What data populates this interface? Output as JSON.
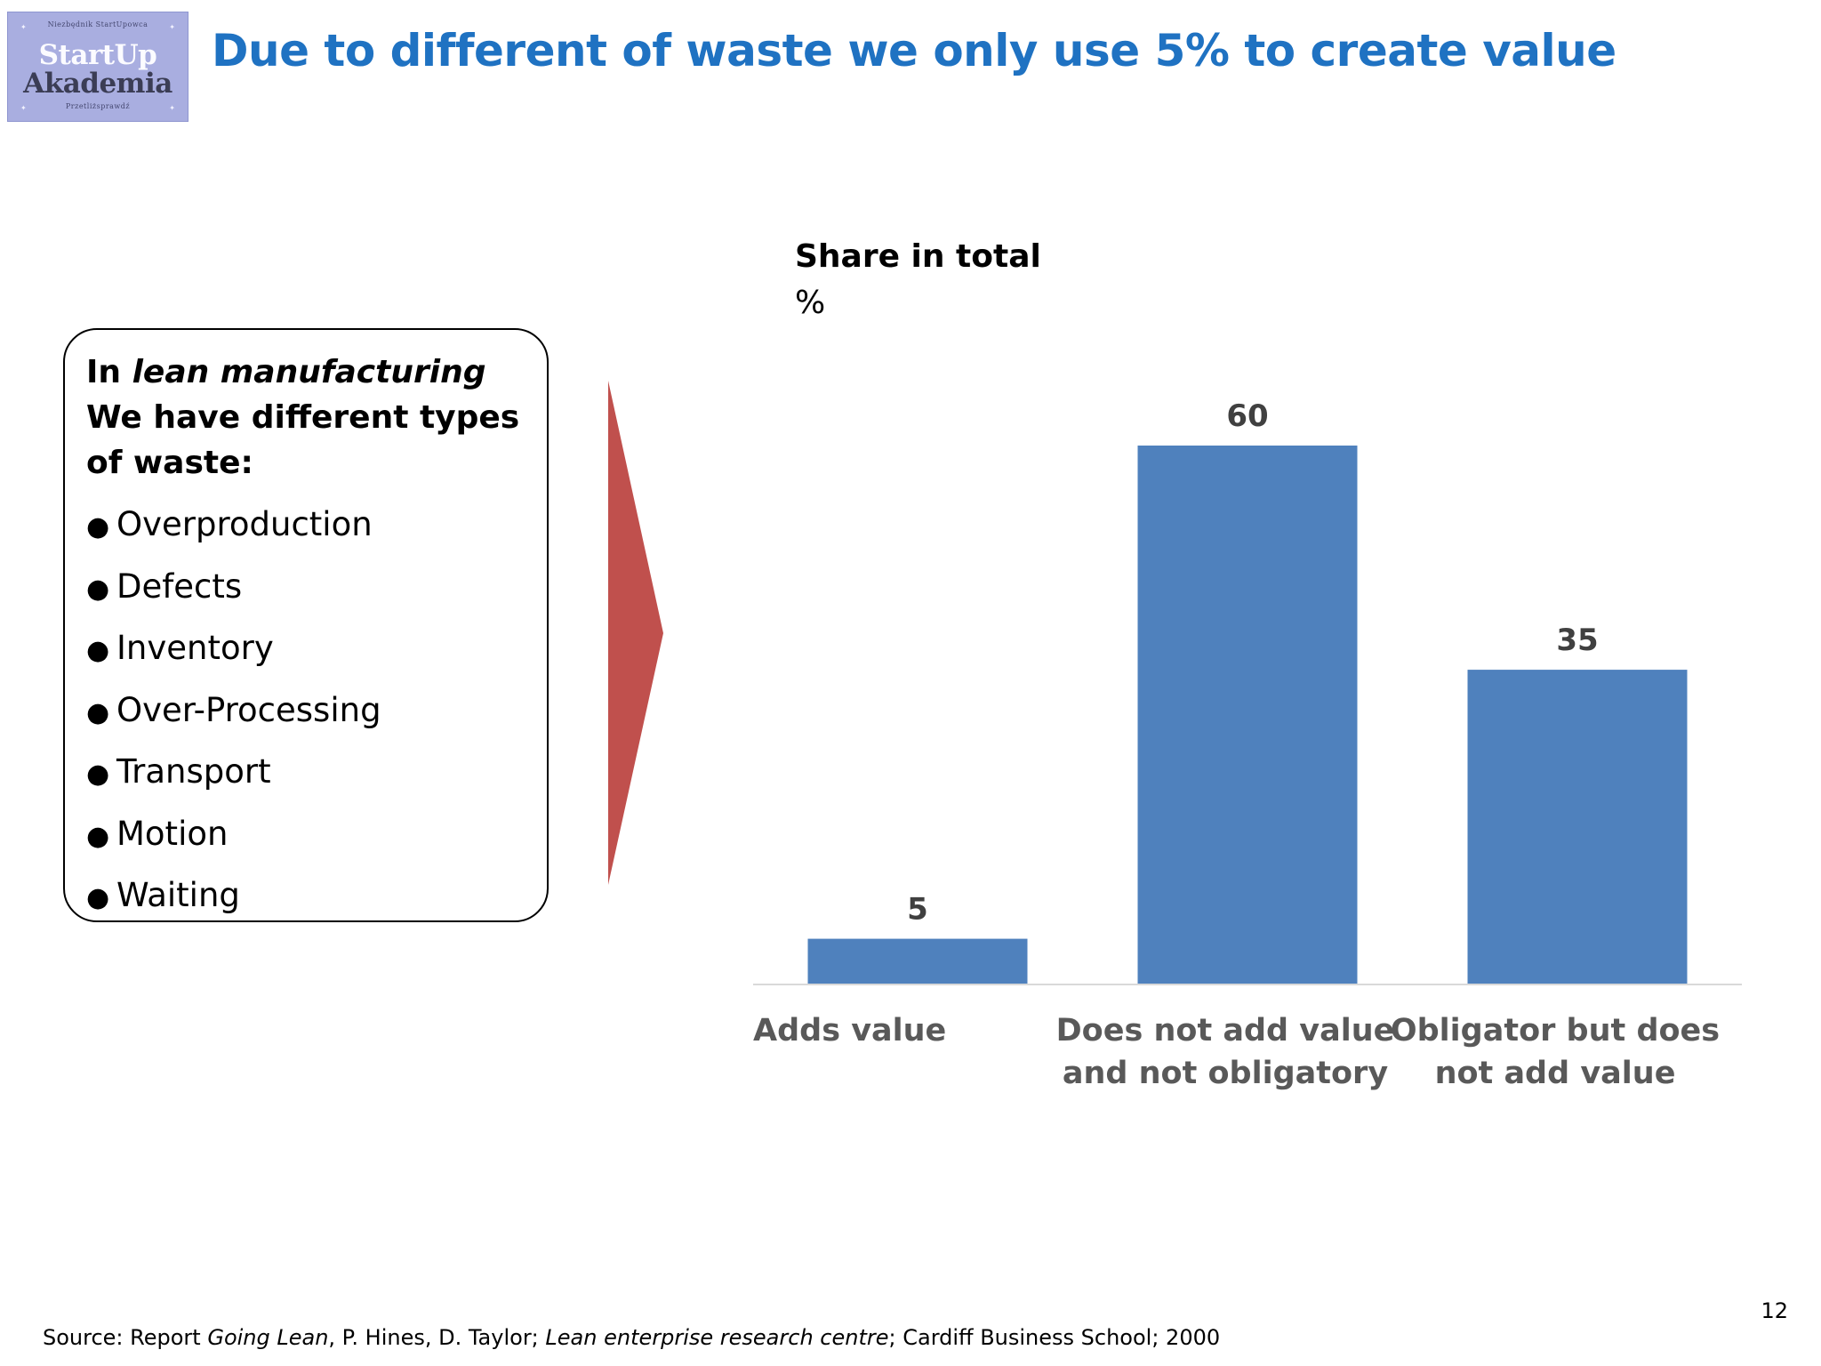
{
  "logo": {
    "top_text": "Niezbędnik StartUpowca",
    "line1": "StartUp",
    "line2": "Akademia",
    "bottom_text": "Przetliżsprawdź"
  },
  "title": "Due to different of waste we only use 5% to create value",
  "waste_box": {
    "intro_pre": "In ",
    "intro_em": "lean manufacturing",
    "intro_post": " We have different types of waste:",
    "items": [
      "Overproduction",
      "Defects",
      "Inventory",
      "Over-Processing",
      "Transport",
      "Motion",
      "Waiting"
    ]
  },
  "chart_data": {
    "type": "bar",
    "title": "Share in total",
    "subtitle": "%",
    "categories": [
      [
        "Adds value"
      ],
      [
        "Does not add value",
        "and not obligatory"
      ],
      [
        "Obligator but does",
        "not add value"
      ]
    ],
    "values": [
      5,
      60,
      35
    ],
    "ylim": [
      0,
      60
    ],
    "grid": false,
    "legend": "none",
    "colors": {
      "bar": "#4f81bd",
      "label": "#404040",
      "axis_label": "#595959",
      "arrow": "#c0504d"
    }
  },
  "source": {
    "prefix": "Source:  Report ",
    "em1": "Going Lean",
    "mid1": ", P. Hines, D. Taylor; ",
    "em2": "Lean enterprise research centre",
    "mid2": "; Cardiff Business School; 2000"
  },
  "page_number": "12"
}
